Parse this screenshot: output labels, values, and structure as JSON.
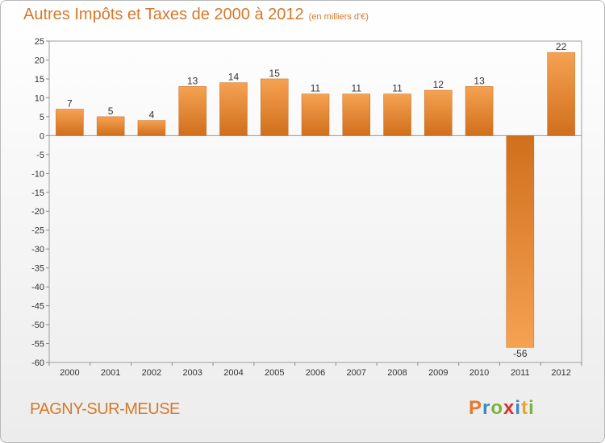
{
  "page": {
    "title": "Autres Impôts et Taxes de 2000 à 2012",
    "unit": "(en milliers d'€)",
    "commune": "PAGNY-SUR-MEUSE",
    "logo": {
      "letters": [
        "P",
        "r",
        "o",
        "x",
        "i",
        "t",
        "i"
      ],
      "colors": [
        "#e8772e",
        "#3a88c8",
        "#7ab33a",
        "#d8312c",
        "#3a88c8",
        "#e8a42e",
        "#7ab33a"
      ]
    }
  },
  "chart_data": {
    "type": "bar",
    "title": "Autres Impôts et Taxes de 2000 à 2012",
    "subtitle": "(en milliers d'€)",
    "categories": [
      "2000",
      "2001",
      "2002",
      "2003",
      "2004",
      "2005",
      "2006",
      "2007",
      "2008",
      "2009",
      "2010",
      "2011",
      "2012"
    ],
    "values": [
      7,
      5,
      4,
      13,
      14,
      15,
      11,
      11,
      11,
      12,
      13,
      -56,
      22
    ],
    "ylim": [
      -60,
      25
    ],
    "yticks": [
      25,
      20,
      15,
      10,
      5,
      0,
      -5,
      -10,
      -15,
      -20,
      -25,
      -30,
      -35,
      -40,
      -45,
      -50,
      -55,
      -60
    ],
    "grid": false,
    "bar_color": "#e2882f"
  }
}
